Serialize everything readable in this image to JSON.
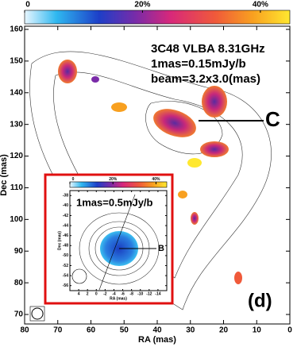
{
  "chart_data": [
    {
      "type": "image",
      "xlabel": "RA (mas)",
      "ylabel": "Dec (mas)",
      "xlim": [
        80,
        0
      ],
      "ylim": [
        67,
        161
      ],
      "xticks": [
        80,
        70,
        60,
        50,
        40,
        30,
        20,
        10,
        0
      ],
      "yticks": [
        70,
        80,
        90,
        100,
        110,
        120,
        130,
        140,
        150,
        160
      ],
      "colorbar_lim": [
        0,
        45
      ],
      "colorbar_ticks": [
        0,
        {
          "value": 20,
          "label": "20%"
        },
        {
          "value": 40,
          "label": "40%"
        }
      ],
      "annotations": [
        "3C48 VLBA 8.31GHz",
        "1mas=0.15mJy/b",
        "beam=3.2x3.0(mas)",
        "C",
        "(d)"
      ]
    },
    {
      "type": "image",
      "xlabel": "RA (mas)",
      "ylabel": "Dec (mas)",
      "xlim": [
        6,
        -16
      ],
      "ylim": [
        -57,
        -37
      ],
      "xticks": [
        4,
        2,
        0,
        -2,
        -4,
        -6,
        -8,
        -10,
        -12,
        -14
      ],
      "yticks": [
        -38,
        -40,
        -42,
        -44,
        -46,
        -48,
        -50,
        -52,
        -54,
        -56
      ],
      "colorbar_lim": [
        0,
        45
      ],
      "colorbar_ticks": [
        0,
        {
          "value": 20,
          "label": "20%"
        },
        {
          "value": 40,
          "label": "40%"
        }
      ],
      "annotations": [
        "1mas=0.5mJy/b",
        "B"
      ]
    }
  ]
}
